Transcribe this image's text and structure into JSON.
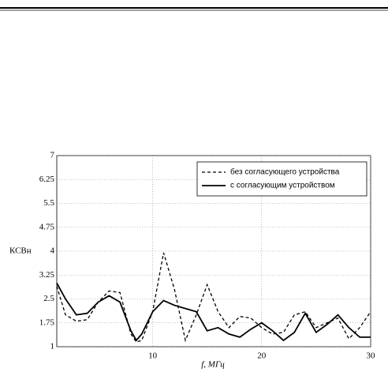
{
  "chart_data": {
    "type": "line",
    "y_label": "КСВн",
    "x_label": "f, МГц",
    "x": [
      1.2,
      2,
      3,
      4,
      5,
      6,
      7,
      8,
      8.5,
      9,
      10,
      11,
      12,
      13,
      14,
      15,
      16,
      17,
      18,
      19,
      20,
      21,
      22,
      23,
      24,
      25,
      26,
      27,
      28,
      29,
      30
    ],
    "series": [
      {
        "name": "без согласующего устройства",
        "color": "#000",
        "dash": true,
        "values": [
          2.9,
          2.0,
          1.8,
          1.85,
          2.4,
          2.75,
          2.7,
          1.4,
          1.15,
          1.2,
          2.1,
          3.95,
          2.8,
          1.2,
          2.0,
          2.95,
          2.1,
          1.6,
          1.95,
          1.9,
          1.6,
          1.4,
          1.45,
          2.0,
          2.1,
          1.6,
          1.75,
          1.9,
          1.25,
          1.6,
          2.1
        ]
      },
      {
        "name": "с согласующим устройством",
        "color": "#000",
        "dash": false,
        "values": [
          3.0,
          2.5,
          2.0,
          2.05,
          2.4,
          2.6,
          2.4,
          1.5,
          1.2,
          1.4,
          2.1,
          2.45,
          2.3,
          2.2,
          2.1,
          1.5,
          1.6,
          1.4,
          1.3,
          1.55,
          1.75,
          1.5,
          1.2,
          1.45,
          2.05,
          1.45,
          1.7,
          2.0,
          1.6,
          1.3,
          1.3
        ]
      }
    ],
    "xlim": [
      1.2,
      30
    ],
    "ylim": [
      1,
      7
    ],
    "xticks": [
      10,
      20,
      30
    ],
    "yticks": [
      1,
      1.75,
      2.5,
      3.25,
      4,
      4.75,
      5.5,
      6.25,
      7
    ],
    "grid": true
  }
}
